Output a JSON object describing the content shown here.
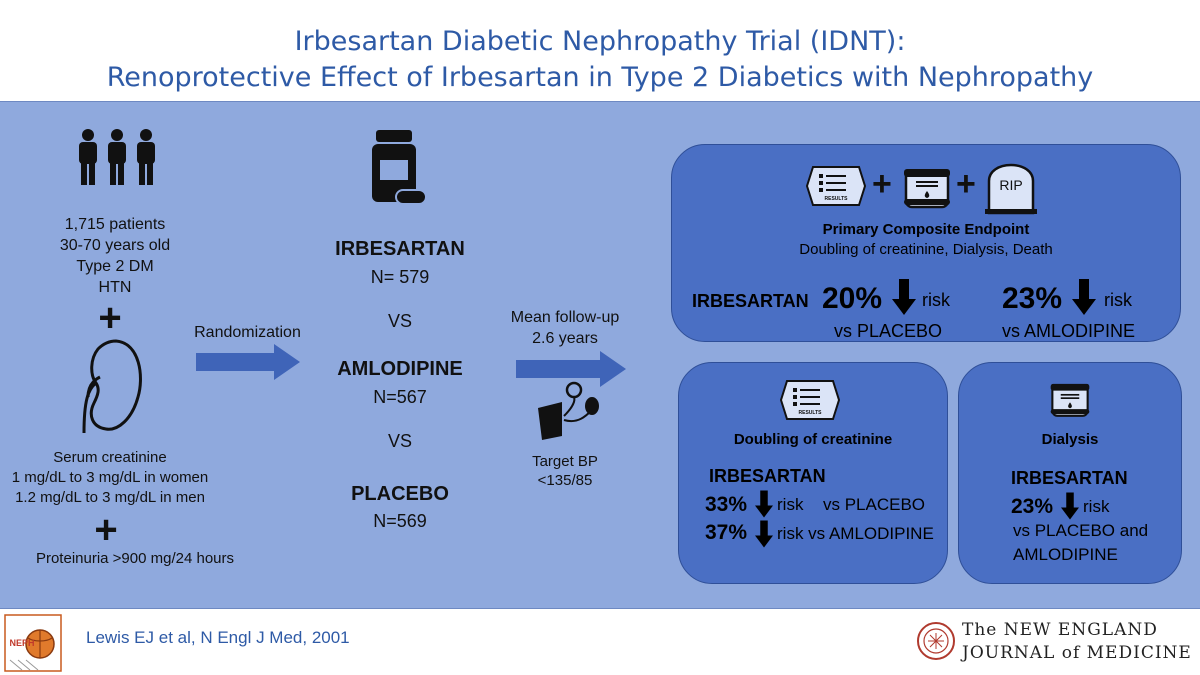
{
  "header": {
    "title_line1": "Irbesartan Diabetic Nephropathy Trial (IDNT):",
    "title_line2": "Renoprotective Effect of Irbesartan in Type 2 Diabetics with Nephropathy"
  },
  "patients": {
    "line1": "1,715 patients",
    "line2": "30-70 years old",
    "line3": "Type 2 DM",
    "line4": "HTN"
  },
  "plus": "+",
  "kidney_criteria": {
    "line1": "Serum creatinine",
    "line2": "1 mg/dL to 3 mg/dL in women",
    "line3": "1.2 mg/dL to 3 mg/dL in men"
  },
  "proteinuria": "Proteinuria >900 mg/24 hours",
  "randomization": "Randomization",
  "arms": [
    {
      "name": "IRBESARTAN",
      "n": "N= 579"
    },
    {
      "name": "AMLODIPINE",
      "n": "N=567"
    },
    {
      "name": "PLACEBO",
      "n": "N=569"
    }
  ],
  "vs": "VS",
  "followup": {
    "line1": "Mean follow-up",
    "line2": "2.6 years"
  },
  "target_bp": {
    "line1": "Target BP",
    "line2": "<135/85"
  },
  "primary": {
    "title": "Primary Composite Endpoint",
    "subtitle": "Doubling of creatinine, Dialysis, Death",
    "drug": "IRBESARTAN",
    "pct1": "20%",
    "risk": "risk",
    "vs1": "vs PLACEBO",
    "pct2": "23%",
    "vs2": "vs AMLODIPINE",
    "icon_text": "RESULTS",
    "tomb_text": "RIP"
  },
  "doubling": {
    "title": "Doubling of creatinine",
    "drug": "IRBESARTAN",
    "pct1": "33%",
    "vs1": "vs PLACEBO",
    "pct2": "37%",
    "risk": "risk",
    "vs2": "risk vs AMLODIPINE"
  },
  "dialysis": {
    "title": "Dialysis",
    "drug": "IRBESARTAN",
    "pct": "23%",
    "risk": "risk",
    "vs_line1": "vs PLACEBO and",
    "vs_line2": "AMLODIPINE"
  },
  "footer": {
    "reference": "Lewis EJ et al, N Engl J Med, 2001",
    "journal_line1": "The NEW ENGLAND",
    "journal_line2": "JOURNAL of MEDICINE",
    "logo_text": "NEPH"
  },
  "colors": {
    "panel": "#8fa9dd",
    "box": "#4a6fc4",
    "arrow": "#3f64b8",
    "title": "#2e5aa6"
  }
}
